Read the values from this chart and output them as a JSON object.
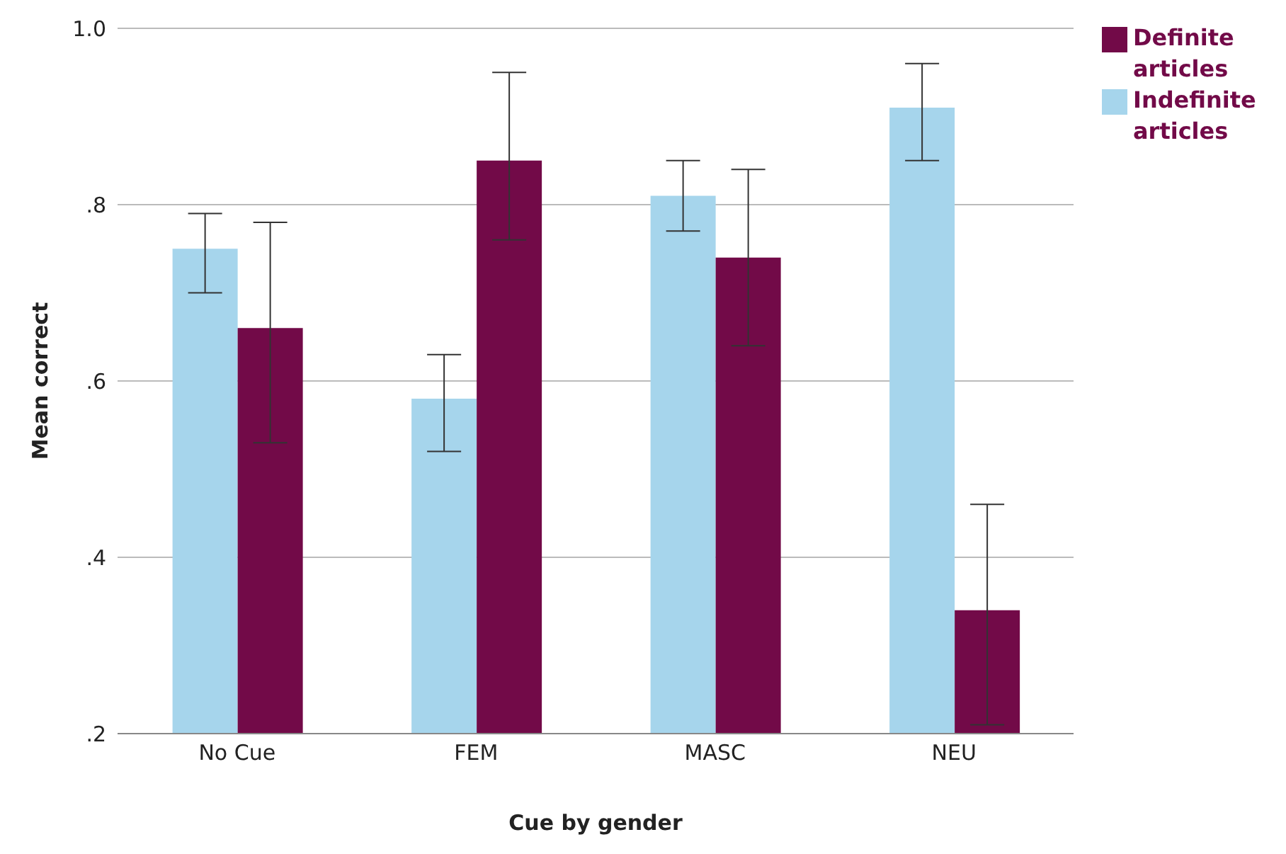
{
  "chart_data": {
    "type": "bar",
    "xlabel": "Cue by gender",
    "ylabel": "Mean correct",
    "categories": [
      "No Cue",
      "FEM",
      "MASC",
      "NEU"
    ],
    "series": [
      {
        "name": "Indefinite articles",
        "color": "#a6d5ec",
        "values": [
          0.75,
          0.58,
          0.81,
          0.91
        ],
        "errors": [
          [
            0.7,
            0.79
          ],
          [
            0.52,
            0.63
          ],
          [
            0.77,
            0.85
          ],
          [
            0.85,
            0.96
          ]
        ]
      },
      {
        "name": "Definite articles",
        "color": "#720a48",
        "values": [
          0.66,
          0.85,
          0.74,
          0.34
        ],
        "errors": [
          [
            0.53,
            0.78
          ],
          [
            0.76,
            0.95
          ],
          [
            0.64,
            0.84
          ],
          [
            0.21,
            0.46
          ]
        ]
      }
    ],
    "ylim": [
      0.2,
      1.0
    ],
    "yticks": [
      {
        "value": 0.2,
        "label": ".2"
      },
      {
        "value": 0.4,
        "label": ".4"
      },
      {
        "value": 0.6,
        "label": ".6"
      },
      {
        "value": 0.8,
        "label": ".8"
      },
      {
        "value": 1.0,
        "label": "1.0"
      }
    ],
    "grid": "y",
    "legend": "top right"
  }
}
